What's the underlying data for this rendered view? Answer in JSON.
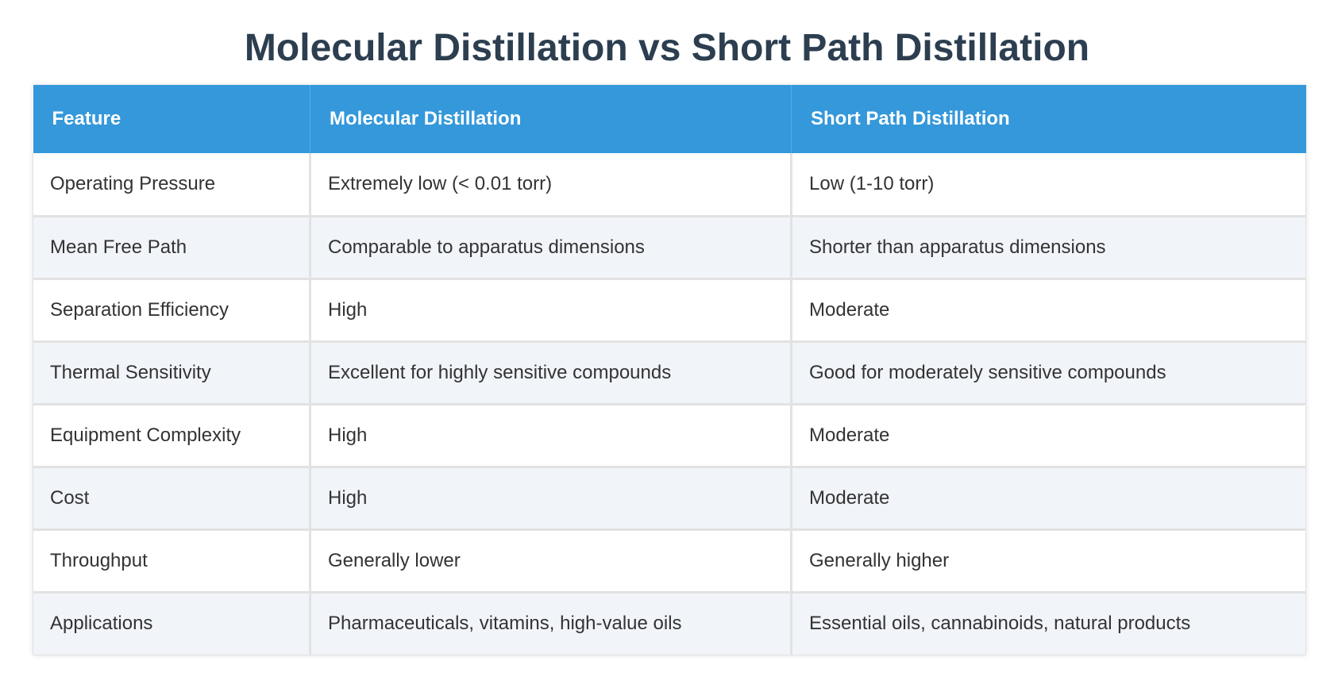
{
  "title": "Molecular Distillation vs Short Path Distillation",
  "table": {
    "headers": [
      "Feature",
      "Molecular Distillation",
      "Short Path Distillation"
    ],
    "rows": [
      [
        "Operating Pressure",
        "Extremely low (< 0.01 torr)",
        "Low (1-10 torr)"
      ],
      [
        "Mean Free Path",
        "Comparable to apparatus dimensions",
        "Shorter than apparatus dimensions"
      ],
      [
        "Separation Efficiency",
        "High",
        "Moderate"
      ],
      [
        "Thermal Sensitivity",
        "Excellent for highly sensitive compounds",
        "Good for moderately sensitive compounds"
      ],
      [
        "Equipment Complexity",
        "High",
        "Moderate"
      ],
      [
        "Cost",
        "High",
        "Moderate"
      ],
      [
        "Throughput",
        "Generally lower",
        "Generally higher"
      ],
      [
        "Applications",
        "Pharmaceuticals, vitamins, high-value oils",
        "Essential oils, cannabinoids, natural products"
      ]
    ]
  },
  "colors": {
    "title": "#2c3e50",
    "header_background": "#3498db",
    "header_text": "#ffffff",
    "alt_row_background": "#f1f4f9",
    "border": "#e2e2e2"
  }
}
